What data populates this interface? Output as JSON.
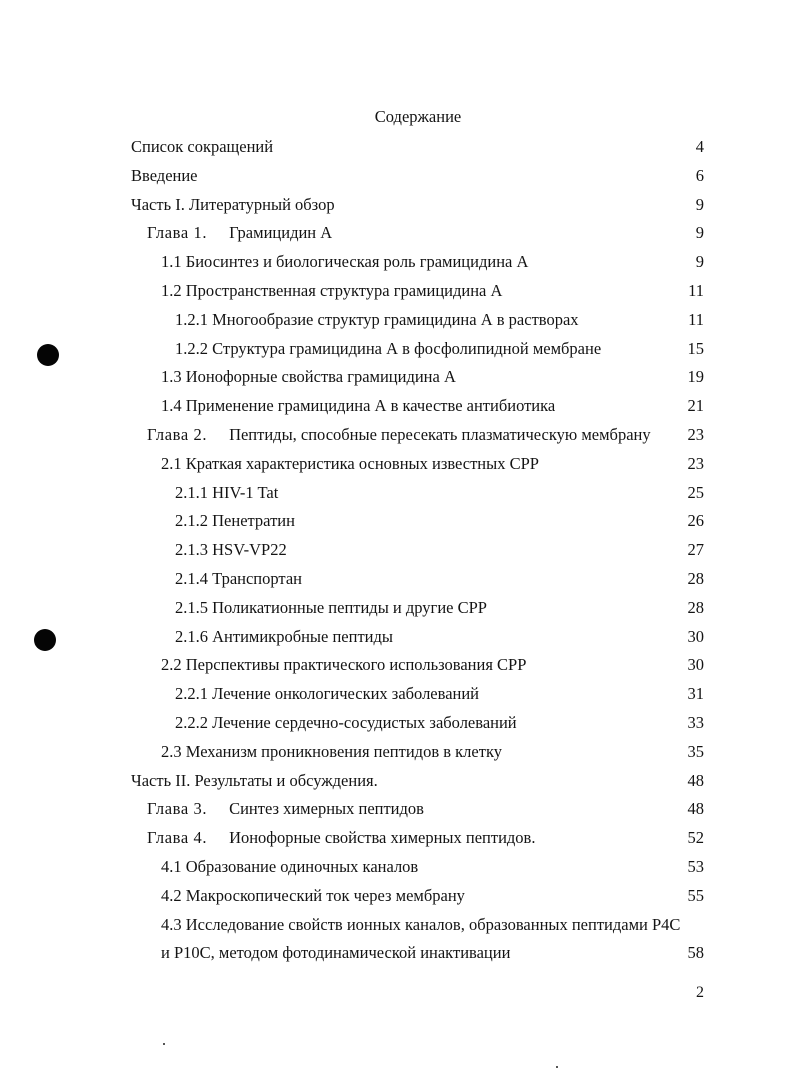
{
  "title": "Содержание",
  "entries": [
    {
      "level": 0,
      "text": "Список сокращений",
      "page": "4"
    },
    {
      "level": 0,
      "text": "Введение",
      "page": "6"
    },
    {
      "level": 0,
      "text": "Часть I. Литературный обзор",
      "page": "9"
    },
    {
      "level": 1,
      "chapter": "Глава 1.",
      "text": "Грамицидин А",
      "page": "9"
    },
    {
      "level": 2,
      "text": "1.1 Биосинтез и биологическая роль грамицидина А",
      "page": "9"
    },
    {
      "level": 2,
      "text": "1.2 Пространственная структура грамицидина А",
      "page": "11"
    },
    {
      "level": 3,
      "text": "1.2.1 Многообразие структур грамицидина А в растворах",
      "page": "11"
    },
    {
      "level": 3,
      "text": "1.2.2 Структура грамицидина А в фосфолипидной мембране",
      "page": "15"
    },
    {
      "level": 2,
      "text": "1.3 Ионофорные свойства грамицидина А",
      "page": "19"
    },
    {
      "level": 2,
      "text": "1.4 Применение грамицидина А в качестве антибиотика",
      "page": "21"
    },
    {
      "level": 1,
      "chapter": "Глава 2.",
      "text": "Пептиды, способные пересекать плазматическую мембрану",
      "page": "23"
    },
    {
      "level": 2,
      "text": "2.1 Краткая характеристика основных известных CPP",
      "page": "23"
    },
    {
      "level": 3,
      "text": "2.1.1 HIV-1 Tat",
      "page": "25"
    },
    {
      "level": 3,
      "text": "2.1.2 Пенетратин",
      "page": "26"
    },
    {
      "level": 3,
      "text": "2.1.3 HSV-VP22",
      "page": "27"
    },
    {
      "level": 3,
      "text": "2.1.4 Транспортан",
      "page": "28"
    },
    {
      "level": 3,
      "text": "2.1.5 Поликатионные пептиды и другие CPP",
      "page": "28"
    },
    {
      "level": 3,
      "text": "2.1.6 Антимикробные пептиды",
      "page": "30"
    },
    {
      "level": 2,
      "text": "2.2 Перспективы практического использования CPP",
      "page": "30"
    },
    {
      "level": 3,
      "text": "2.2.1 Лечение онкологических заболеваний",
      "page": "31"
    },
    {
      "level": 3,
      "text": "2.2.2 Лечение сердечно-сосудистых заболеваний",
      "page": "33"
    },
    {
      "level": 2,
      "text": "2.3 Механизм проникновения пептидов в клетку",
      "page": "35"
    },
    {
      "level": 0,
      "text": "Часть II. Результаты и обсуждения.",
      "page": "48"
    },
    {
      "level": 1,
      "chapter": "Глава 3.",
      "text": "Синтез  химерных  пептидов",
      "page": "48"
    },
    {
      "level": 1,
      "chapter": "Глава 4.",
      "text": "Ионофорные свойства химерных пептидов.",
      "page": "52"
    },
    {
      "level": 2,
      "text": "4.1 Образование одиночных каналов",
      "page": "53"
    },
    {
      "level": 2,
      "text": "4.2 Макроскопический ток через мембрану",
      "page": "55"
    },
    {
      "level": 2,
      "text": "4.3 Исследование свойств ионных каналов, образованных пептидами P4C",
      "page": ""
    },
    {
      "level": 2,
      "text": "и P10C, методом фотодинамической инактивации",
      "page": "58"
    }
  ],
  "page_number": "2"
}
